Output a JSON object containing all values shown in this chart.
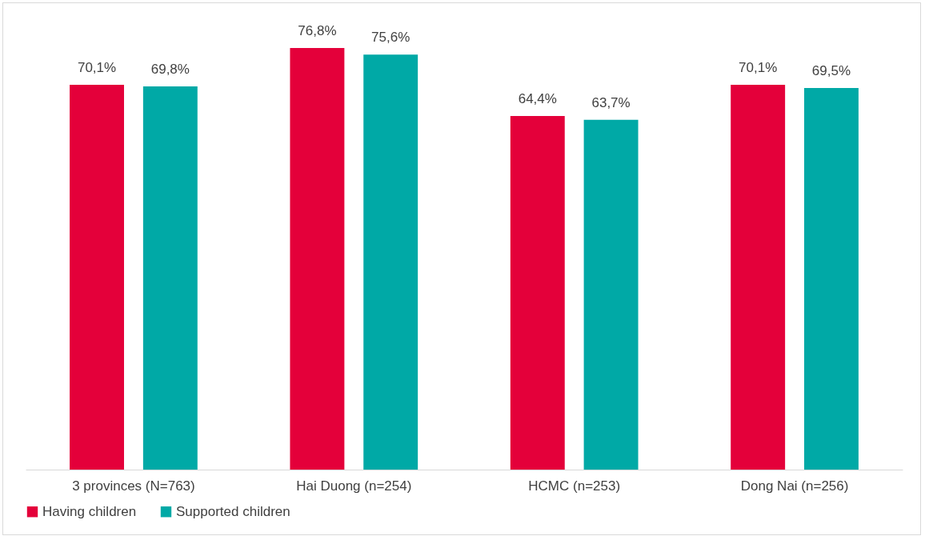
{
  "chart_data": {
    "type": "bar",
    "categories": [
      "3 provinces (N=763)",
      "Hai Duong (n=254)",
      "HCMC (n=253)",
      "Dong Nai (n=256)"
    ],
    "series": [
      {
        "name": "Having children",
        "color": "#e4003a",
        "values": [
          70.1,
          76.8,
          64.4,
          70.1
        ],
        "value_labels": [
          "70,1%",
          "76,8%",
          "64,4%",
          "70,1%"
        ]
      },
      {
        "name": "Supported children",
        "color": "#00a9a6",
        "values": [
          69.8,
          75.6,
          63.7,
          69.5
        ],
        "value_labels": [
          "69,8%",
          "75,6%",
          "63,7%",
          "69,5%"
        ]
      }
    ],
    "legend": "bottom",
    "tick_labels": "x"
  }
}
